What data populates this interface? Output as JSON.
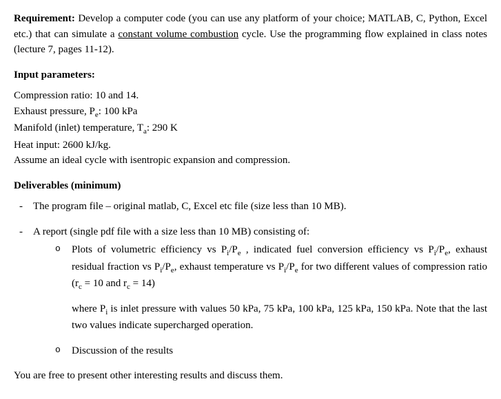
{
  "requirement": {
    "label": "Requirement:",
    "text_before": " Develop a computer code (you can use any platform of your choice; MATLAB, C, Python, Excel etc.) that can simulate a ",
    "underlined": "constant volume combustion",
    "text_after": " cycle. Use the programming flow explained in class notes (lecture 7, pages 11-12)."
  },
  "input_params": {
    "heading": "Input parameters:",
    "items": [
      "Compression ratio: 10 and 14.",
      "Exhaust pressure, P_e: 100 kPa",
      "Manifold (inlet) temperature, T_a: 290 K",
      "Heat input: 2600 kJ/kg.",
      "Assume an ideal cycle with isentropic expansion and compression."
    ]
  },
  "deliverables": {
    "heading": "Deliverables (minimum)",
    "dash_items": [
      "The program file – original matlab, C, Excel etc file (size less than 10 MB).",
      "A report (single pdf file with a size less than 10 MB) consisting of:"
    ],
    "circ_items": {
      "plots": {
        "main": "Plots of volumetric efficiency vs P_i/P_e , indicated fuel conversion efficiency vs P_i/P_e, exhaust residual fraction vs P_i/P_e, exhaust temperature vs P_i/P_e  for two different values of compression ratio (r_c = 10 and r_c = 14)",
        "sub": "where P_i is inlet pressure with values 50 kPa, 75 kPa, 100 kPa, 125 kPa, 150 kPa. Note that the last two values indicate supercharged operation."
      },
      "discussion": "Discussion of the results"
    }
  },
  "closing": "You are free to present other interesting results and discuss them."
}
